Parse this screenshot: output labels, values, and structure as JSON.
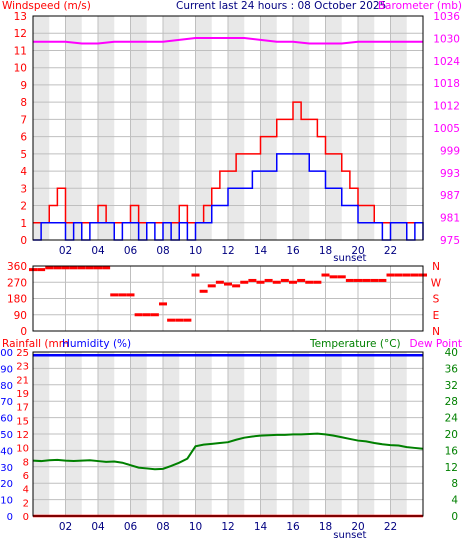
{
  "colors": {
    "wind_avg": "#0000ff",
    "wind_gust": "#ff0000",
    "barometer": "#ff00ff",
    "wind_dir": "#ff0000",
    "rain": "#ff0000",
    "humidity": "#0000ff",
    "temperature": "#008000",
    "dew_point": "#ff00ff",
    "grid": "#bfbfbf",
    "hour_band": "#e8e8e8",
    "title": "#000080"
  },
  "chart_data": [
    {
      "type": "line",
      "title": "Current last 24 hours : 08 October 2025",
      "ylabel": "Windspeed (m/s)",
      "ylabel_right": "Barometer (mb)",
      "x_ticks": [
        "02",
        "04",
        "06",
        "08",
        "10",
        "12",
        "14",
        "16",
        "18",
        "20",
        "22"
      ],
      "x_annotation": "sunset",
      "x_annotation_hour": 19.5,
      "xlim": [
        0,
        24
      ],
      "ylim": [
        0,
        13
      ],
      "y_ticks": [
        "0",
        "1",
        "2",
        "3",
        "4",
        "5",
        "6",
        "7",
        "8",
        "9",
        "10",
        "11",
        "12",
        "13"
      ],
      "y2lim": [
        975,
        1036
      ],
      "y2_ticks": [
        "975",
        "981",
        "987",
        "993",
        "999",
        "1005",
        "1012",
        "1018",
        "1024",
        "1030",
        "1036"
      ],
      "grid": true,
      "series": [
        {
          "key": "gust",
          "x": [
            0,
            0.5,
            1,
            1.5,
            2,
            2.5,
            3,
            3.5,
            4,
            4.5,
            5,
            5.5,
            6,
            6.5,
            7,
            7.5,
            8,
            8.5,
            9,
            9.5,
            10,
            10.5,
            11,
            11.5,
            12,
            12.5,
            13,
            13.5,
            14,
            14.5,
            15,
            15.5,
            16,
            16.5,
            17,
            17.5,
            18,
            18.5,
            19,
            19.5,
            20,
            20.5,
            21,
            21.5,
            22,
            22.5,
            23,
            23.5,
            24
          ],
          "values": [
            1,
            1,
            2,
            3,
            1,
            1,
            1,
            1,
            2,
            1,
            1,
            1,
            2,
            1,
            1,
            1,
            1,
            1,
            2,
            1,
            1,
            2,
            3,
            4,
            4,
            5,
            5,
            5,
            6,
            6,
            7,
            7,
            8,
            7,
            7,
            6,
            5,
            5,
            4,
            3,
            2,
            2,
            1,
            1,
            1,
            1,
            1,
            1,
            1
          ]
        },
        {
          "key": "avg",
          "x": [
            0,
            0.5,
            1,
            1.5,
            2,
            2.5,
            3,
            3.5,
            4,
            4.5,
            5,
            5.5,
            6,
            6.5,
            7,
            7.5,
            8,
            8.5,
            9,
            9.5,
            10,
            10.5,
            11,
            11.5,
            12,
            12.5,
            13,
            13.5,
            14,
            14.5,
            15,
            15.5,
            16,
            16.5,
            17,
            17.5,
            18,
            18.5,
            19,
            19.5,
            20,
            20.5,
            21,
            21.5,
            22,
            22.5,
            23,
            23.5,
            24
          ],
          "values": [
            0,
            1,
            1,
            1,
            0,
            1,
            0,
            1,
            1,
            1,
            0,
            1,
            1,
            0,
            1,
            0,
            1,
            0,
            1,
            0,
            1,
            1,
            2,
            2,
            3,
            3,
            3,
            4,
            4,
            4,
            5,
            5,
            5,
            5,
            4,
            4,
            3,
            3,
            2,
            2,
            1,
            1,
            1,
            0,
            1,
            1,
            0,
            1,
            0
          ]
        },
        {
          "key": "barometer",
          "axis": "right",
          "x": [
            0,
            1,
            2,
            3,
            4,
            5,
            6,
            7,
            8,
            9,
            10,
            11,
            12,
            13,
            14,
            15,
            16,
            17,
            18,
            19,
            20,
            21,
            22,
            23,
            24
          ],
          "values": [
            1029,
            1029,
            1029,
            1028.5,
            1028.5,
            1029,
            1029,
            1029,
            1029,
            1029.5,
            1030,
            1030,
            1030,
            1030,
            1029.5,
            1029,
            1029,
            1028.5,
            1028.5,
            1028.5,
            1029,
            1029,
            1029,
            1029,
            1029
          ]
        }
      ]
    },
    {
      "type": "scatter",
      "y_ticks": [
        "0",
        "90",
        "180",
        "270",
        "360"
      ],
      "y_ticks_right": [
        "N",
        "E",
        "S",
        "W",
        "N"
      ],
      "ylim": [
        0,
        360
      ],
      "xlim": [
        0,
        24
      ],
      "grid": true,
      "series": [
        {
          "key": "direction",
          "x": [
            0,
            0.5,
            1,
            1.5,
            2,
            2.5,
            3,
            3.5,
            4,
            4.5,
            5,
            5.5,
            6,
            6.5,
            7,
            7.5,
            8,
            8.5,
            9,
            9.5,
            10,
            10.5,
            11,
            11.5,
            12,
            12.5,
            13,
            13.5,
            14,
            14.5,
            15,
            15.5,
            16,
            16.5,
            17,
            17.5,
            18,
            18.5,
            19,
            19.5,
            20,
            20.5,
            21,
            21.5,
            22,
            22.5,
            23,
            23.5,
            24
          ],
          "values": [
            340,
            340,
            350,
            350,
            350,
            350,
            350,
            350,
            350,
            350,
            200,
            200,
            200,
            90,
            90,
            90,
            150,
            60,
            60,
            60,
            310,
            220,
            250,
            270,
            260,
            250,
            270,
            280,
            270,
            280,
            270,
            280,
            270,
            280,
            270,
            270,
            310,
            300,
            300,
            280,
            280,
            280,
            280,
            280,
            310,
            310,
            310,
            310,
            310
          ]
        }
      ]
    },
    {
      "type": "line",
      "ylabel": "Rainfall (mm",
      "ylabel2": "Humidity (%)",
      "ylabel_right": "Temperature (°C)",
      "ylabel_right2": "Dew Point",
      "x_ticks": [
        "02",
        "04",
        "06",
        "08",
        "10",
        "12",
        "14",
        "16",
        "18",
        "20",
        "22"
      ],
      "x_annotation": "sunset",
      "x_annotation_hour": 19.5,
      "xlim": [
        0,
        24
      ],
      "rain_ticks": [
        "0",
        "2",
        "4",
        "6",
        "8",
        "10",
        "12",
        "15",
        "17",
        "19",
        "21",
        "23",
        "25"
      ],
      "humidity_ticks": [
        "0",
        "10",
        "20",
        "30",
        "40",
        "50",
        "60",
        "70",
        "80",
        "90",
        "100"
      ],
      "ylim": [
        0,
        100
      ],
      "y2lim": [
        0,
        40
      ],
      "y2_ticks": [
        "0",
        "4",
        "8",
        "12",
        "16",
        "20",
        "24",
        "28",
        "32",
        "36",
        "40"
      ],
      "grid": true,
      "series": [
        {
          "key": "humidity",
          "x": [
            0,
            24
          ],
          "values": [
            98,
            98
          ]
        },
        {
          "key": "rain",
          "x": [
            0,
            24
          ],
          "values": [
            0,
            0
          ]
        },
        {
          "key": "temperature",
          "axis": "right",
          "x": [
            0,
            0.5,
            1,
            1.5,
            2,
            2.5,
            3,
            3.5,
            4,
            4.5,
            5,
            5.5,
            6,
            6.5,
            7,
            7.5,
            8,
            8.5,
            9,
            9.5,
            10,
            10.5,
            11,
            11.5,
            12,
            12.5,
            13,
            13.5,
            14,
            14.5,
            15,
            15.5,
            16,
            16.5,
            17,
            17.5,
            18,
            18.5,
            19,
            19.5,
            20,
            20.5,
            21,
            21.5,
            22,
            22.5,
            23,
            23.5,
            24
          ],
          "values": [
            13.5,
            13.4,
            13.6,
            13.7,
            13.5,
            13.4,
            13.5,
            13.6,
            13.4,
            13.2,
            13.3,
            13,
            12.4,
            11.8,
            11.6,
            11.4,
            11.5,
            12.2,
            13,
            14,
            17,
            17.4,
            17.6,
            17.8,
            18,
            18.6,
            19.1,
            19.4,
            19.6,
            19.7,
            19.8,
            19.8,
            19.9,
            19.9,
            20,
            20.1,
            19.9,
            19.6,
            19.2,
            18.8,
            18.4,
            18.2,
            17.8,
            17.5,
            17.3,
            17.2,
            16.8,
            16.6,
            16.4
          ]
        }
      ]
    }
  ]
}
